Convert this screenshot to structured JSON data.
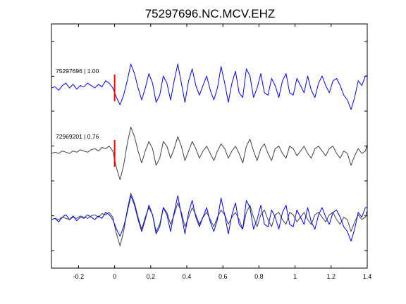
{
  "chart_data": {
    "type": "line",
    "title": "75297696.NC.MCV.EHZ",
    "xlabel": "",
    "ylabel": "",
    "xlim": [
      -0.35,
      1.4
    ],
    "x_ticks": [
      -0.2,
      0,
      0.2,
      0.4,
      0.6,
      0.8,
      1,
      1.2,
      1.4
    ],
    "x_tick_labels": [
      "-0.2",
      "0",
      "0.2",
      "0.4",
      "0.6",
      "0.8",
      "1",
      "1.2",
      "1.4"
    ],
    "y_tick_count": 7,
    "grid": false,
    "pick_time": 0,
    "colors": {
      "master": "#0000ff",
      "correlated": "#404040",
      "pick": "#ff0000",
      "axes": "#000000"
    },
    "panels": [
      {
        "label": "75297696 | 1.00",
        "series": [
          "master"
        ],
        "pick": true
      },
      {
        "label": "72969201 | 0.76",
        "series": [
          "correlated"
        ],
        "pick": true
      },
      {
        "label": "",
        "series": [
          "correlated",
          "master"
        ],
        "pick": false
      }
    ],
    "series": [
      {
        "id": "master",
        "x": [
          -0.35,
          -0.33,
          -0.31,
          -0.29,
          -0.27,
          -0.25,
          -0.23,
          -0.21,
          -0.19,
          -0.17,
          -0.15,
          -0.13,
          -0.11,
          -0.09,
          -0.07,
          -0.05,
          -0.03,
          -0.01,
          0.01,
          0.03,
          0.05,
          0.07,
          0.09,
          0.11,
          0.13,
          0.15,
          0.17,
          0.19,
          0.21,
          0.23,
          0.25,
          0.27,
          0.29,
          0.31,
          0.33,
          0.35,
          0.37,
          0.39,
          0.41,
          0.43,
          0.45,
          0.47,
          0.49,
          0.51,
          0.53,
          0.55,
          0.57,
          0.59,
          0.61,
          0.63,
          0.65,
          0.67,
          0.69,
          0.71,
          0.73,
          0.75,
          0.77,
          0.79,
          0.81,
          0.83,
          0.85,
          0.87,
          0.89,
          0.91,
          0.93,
          0.95,
          0.97,
          0.99,
          1.01,
          1.03,
          1.05,
          1.07,
          1.09,
          1.11,
          1.13,
          1.15,
          1.17,
          1.19,
          1.21,
          1.23,
          1.25,
          1.27,
          1.29,
          1.31,
          1.33,
          1.35,
          1.37,
          1.39,
          1.4
        ],
        "y": [
          0.0,
          0.05,
          -0.1,
          0.1,
          0.2,
          0.0,
          0.15,
          -0.05,
          0.1,
          0.05,
          0.2,
          0.1,
          0.0,
          0.15,
          0.05,
          0.3,
          0.2,
          0.0,
          -0.4,
          -0.7,
          -0.3,
          0.3,
          1.0,
          0.6,
          0.0,
          -0.5,
          0.0,
          0.6,
          0.2,
          -0.6,
          -0.3,
          0.5,
          0.2,
          -0.5,
          0.3,
          1.0,
          0.2,
          -0.6,
          0.3,
          0.8,
          0.1,
          -0.3,
          0.1,
          0.5,
          -0.1,
          -0.5,
          0.0,
          0.9,
          0.2,
          -0.6,
          0.2,
          0.7,
          -0.2,
          -0.4,
          0.8,
          0.5,
          -0.4,
          0.0,
          0.6,
          -0.2,
          -0.3,
          0.4,
          0.1,
          -0.4,
          0.3,
          0.6,
          -0.2,
          -0.3,
          0.4,
          0.1,
          -0.2,
          0.5,
          -0.1,
          -0.4,
          0.2,
          0.5,
          0.1,
          -0.2,
          0.3,
          0.4,
          0.1,
          -0.3,
          -0.5,
          -0.9,
          -0.4,
          0.3,
          0.1,
          0.5,
          0.5
        ]
      },
      {
        "id": "correlated",
        "x": [
          -0.35,
          -0.33,
          -0.31,
          -0.29,
          -0.27,
          -0.25,
          -0.23,
          -0.21,
          -0.19,
          -0.17,
          -0.15,
          -0.13,
          -0.11,
          -0.09,
          -0.07,
          -0.05,
          -0.03,
          -0.01,
          0.01,
          0.03,
          0.05,
          0.07,
          0.09,
          0.11,
          0.13,
          0.15,
          0.17,
          0.19,
          0.21,
          0.23,
          0.25,
          0.27,
          0.29,
          0.31,
          0.33,
          0.35,
          0.37,
          0.39,
          0.41,
          0.43,
          0.45,
          0.47,
          0.49,
          0.51,
          0.53,
          0.55,
          0.57,
          0.59,
          0.61,
          0.63,
          0.65,
          0.67,
          0.69,
          0.71,
          0.73,
          0.75,
          0.77,
          0.79,
          0.81,
          0.83,
          0.85,
          0.87,
          0.89,
          0.91,
          0.93,
          0.95,
          0.97,
          0.99,
          1.01,
          1.03,
          1.05,
          1.07,
          1.09,
          1.11,
          1.13,
          1.15,
          1.17,
          1.19,
          1.21,
          1.23,
          1.25,
          1.27,
          1.29,
          1.31,
          1.33,
          1.35,
          1.37,
          1.39,
          1.4
        ],
        "y": [
          0.0,
          0.05,
          0.0,
          0.1,
          0.05,
          0.0,
          0.1,
          0.05,
          0.15,
          0.1,
          0.05,
          0.15,
          0.2,
          0.1,
          0.25,
          0.2,
          0.3,
          0.1,
          -0.6,
          -1.1,
          -0.5,
          0.4,
          1.1,
          0.7,
          0.1,
          -0.4,
          0.1,
          0.5,
          0.2,
          -0.5,
          -0.2,
          0.5,
          0.3,
          -0.2,
          0.2,
          0.7,
          0.3,
          -0.3,
          0.1,
          0.5,
          0.2,
          -0.2,
          0.1,
          0.3,
          0.0,
          -0.3,
          0.1,
          0.4,
          0.2,
          -0.2,
          0.1,
          0.3,
          0.0,
          -0.4,
          0.3,
          0.6,
          0.1,
          -0.3,
          0.2,
          0.4,
          0.0,
          -0.3,
          0.2,
          0.3,
          0.0,
          -0.2,
          0.3,
          0.2,
          -0.1,
          0.1,
          0.3,
          0.0,
          -0.2,
          0.2,
          0.3,
          0.1,
          -0.1,
          0.2,
          0.3,
          0.0,
          -0.2,
          0.1,
          0.0,
          -0.5,
          -0.1,
          0.2,
          0.0,
          0.1,
          0.4
        ]
      }
    ]
  }
}
